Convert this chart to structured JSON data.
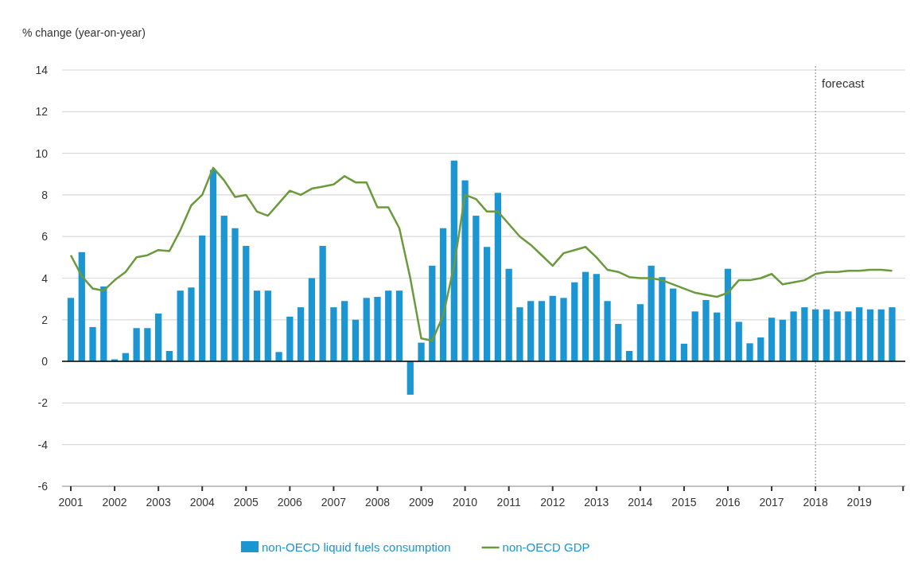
{
  "chart_data": {
    "type": "bar",
    "ylabel": "% change (year-on-year)",
    "x": [
      2001,
      2001.25,
      2001.5,
      2001.75,
      2002,
      2002.25,
      2002.5,
      2002.75,
      2003,
      2003.25,
      2003.5,
      2003.75,
      2004,
      2004.25,
      2004.5,
      2004.75,
      2005,
      2005.25,
      2005.5,
      2005.75,
      2006,
      2006.25,
      2006.5,
      2006.75,
      2007,
      2007.25,
      2007.5,
      2007.75,
      2008,
      2008.25,
      2008.5,
      2008.75,
      2009,
      2009.25,
      2009.5,
      2009.75,
      2010,
      2010.25,
      2010.5,
      2010.75,
      2011,
      2011.25,
      2011.5,
      2011.75,
      2012,
      2012.25,
      2012.5,
      2012.75,
      2013,
      2013.25,
      2013.5,
      2013.75,
      2014,
      2014.25,
      2014.5,
      2014.75,
      2015,
      2015.25,
      2015.5,
      2015.75,
      2016,
      2016.25,
      2016.5,
      2016.75,
      2017,
      2017.25,
      2017.5,
      2017.75,
      2018,
      2018.25,
      2018.5,
      2018.75,
      2019,
      2019.25,
      2019.5,
      2019.75
    ],
    "series": [
      {
        "name": "non-OECD liquid fuels consumption",
        "color": "#1b96d2",
        "values": [
          3.05,
          5.25,
          1.65,
          3.6,
          0.1,
          0.4,
          1.6,
          1.6,
          2.3,
          0.5,
          3.4,
          3.55,
          6.05,
          9.2,
          7.0,
          6.4,
          5.55,
          3.4,
          3.4,
          0.45,
          2.15,
          2.6,
          4.0,
          5.55,
          2.6,
          2.9,
          2.0,
          3.05,
          3.1,
          3.4,
          3.4,
          -1.6,
          0.9,
          4.6,
          6.4,
          9.65,
          8.7,
          7.0,
          5.5,
          8.1,
          4.45,
          2.6,
          2.9,
          2.9,
          3.15,
          3.05,
          3.8,
          4.3,
          4.2,
          2.9,
          1.8,
          0.5,
          2.75,
          4.6,
          4.05,
          3.5,
          0.85,
          2.4,
          2.95,
          2.35,
          4.45,
          1.9,
          0.87,
          1.15,
          2.1,
          2.0,
          2.4,
          2.6,
          2.5,
          2.5,
          2.4,
          2.4,
          2.6,
          2.5,
          2.5,
          2.6
        ]
      },
      {
        "name": "non-OECD GDP",
        "type": "line",
        "color": "#6b9a3c",
        "values": [
          5.1,
          4.1,
          3.5,
          3.4,
          3.9,
          4.3,
          5.0,
          5.1,
          5.35,
          5.3,
          6.3,
          7.5,
          8.0,
          9.3,
          8.7,
          7.9,
          8.0,
          7.2,
          7.0,
          7.6,
          8.2,
          8.0,
          8.3,
          8.4,
          8.5,
          8.9,
          8.6,
          8.6,
          7.4,
          7.4,
          6.4,
          4.0,
          1.1,
          1.0,
          2.2,
          4.6,
          8.0,
          7.8,
          7.2,
          7.2,
          6.6,
          6.0,
          5.6,
          5.1,
          4.6,
          5.2,
          5.35,
          5.5,
          5.0,
          4.4,
          4.3,
          4.05,
          4.0,
          4.0,
          3.9,
          3.7,
          3.5,
          3.3,
          3.2,
          3.1,
          3.3,
          3.9,
          3.9,
          4.0,
          4.2,
          3.7,
          3.8,
          3.9,
          4.2,
          4.3,
          4.3,
          4.35,
          4.35,
          4.4,
          4.4,
          4.35
        ]
      }
    ],
    "xlim": [
      2000.8,
      2020.05
    ],
    "xticks": [
      2001,
      2002,
      2003,
      2004,
      2005,
      2006,
      2007,
      2008,
      2009,
      2010,
      2011,
      2012,
      2013,
      2014,
      2015,
      2016,
      2017,
      2018,
      2019,
      {
        "value": 2020,
        "label": null
      }
    ],
    "ylim": [
      -6,
      14
    ],
    "yticks": [
      -6,
      -4,
      -2,
      0,
      2,
      4,
      6,
      8,
      10,
      12,
      14
    ],
    "grid": "y",
    "legend": "bottom",
    "marker": "none",
    "ref_lines": [
      {
        "axis": "x",
        "value": 2018,
        "label": "forecast",
        "color": "#888888",
        "line_style": "dotted"
      }
    ]
  }
}
